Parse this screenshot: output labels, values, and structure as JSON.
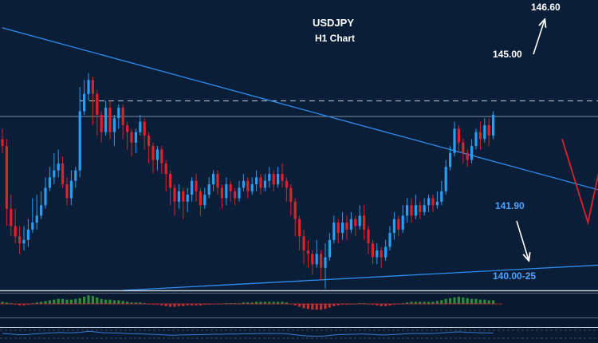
{
  "chart_data": {
    "type": "candlestick",
    "title": "USDJPY",
    "subtitle": "H1 Chart",
    "colors": {
      "background": "#0b1e38",
      "bull": "#2a9df4",
      "bear": "#e0202a",
      "trendline": "#2f8ef0",
      "dashed_level": "#c8d0da",
      "current_level": "#7d8fa6",
      "forecast_red": "#e0202a",
      "forecast_white": "#ffffff",
      "label_white": "#ffffff",
      "label_blue": "#4fa3ff",
      "osc_green": "#2e8b3e",
      "osc_red": "#c23030",
      "osc_line": "#3a7bd5"
    },
    "ylim": [
      139.55,
      147.9
    ],
    "levels": [
      {
        "price": 145.0,
        "label": "145.00",
        "style": "dashed"
      },
      {
        "price": 144.55,
        "label": "",
        "style": "solid"
      }
    ],
    "annotations": [
      {
        "text": "146.60",
        "color": "white",
        "arrow": "up"
      },
      {
        "text": "145.00",
        "color": "white"
      },
      {
        "text": "141.90",
        "color": "blue"
      },
      {
        "text": "140.00-25",
        "color": "blue",
        "arrow": "down"
      }
    ],
    "trendlines": [
      {
        "name": "upper",
        "from": [
          0,
          147.1
        ],
        "to": [
          150,
          142.05
        ]
      },
      {
        "name": "lower",
        "from": [
          28,
          139.55
        ],
        "to": [
          150,
          140.35
        ]
      }
    ],
    "forecast_path": [
      [
        130,
        143.9
      ],
      [
        136,
        141.5
      ],
      [
        140,
        143.8
      ],
      [
        144,
        142.4
      ]
    ],
    "candles": [
      [
        143.9,
        143.7,
        144.2,
        143.5
      ],
      [
        143.7,
        141.9,
        143.9,
        141.4
      ],
      [
        141.9,
        141.4,
        142.3,
        141.1
      ],
      [
        141.4,
        141.1,
        141.9,
        140.9
      ],
      [
        141.1,
        140.9,
        141.4,
        140.6
      ],
      [
        140.9,
        141.0,
        141.4,
        140.7
      ],
      [
        141.0,
        141.3,
        141.6,
        140.8
      ],
      [
        141.3,
        141.5,
        142.2,
        141.2
      ],
      [
        141.5,
        141.7,
        142.3,
        141.3
      ],
      [
        141.7,
        142.0,
        142.4,
        141.6
      ],
      [
        142.0,
        142.5,
        142.8,
        141.9
      ],
      [
        142.5,
        142.8,
        143.1,
        142.4
      ],
      [
        142.8,
        143.0,
        143.5,
        142.6
      ],
      [
        143.0,
        143.2,
        143.6,
        142.8
      ],
      [
        143.2,
        142.6,
        143.4,
        142.5
      ],
      [
        142.6,
        142.2,
        142.8,
        142.0
      ],
      [
        142.2,
        142.7,
        143.0,
        142.0
      ],
      [
        142.7,
        143.0,
        143.1,
        142.5
      ],
      [
        143.0,
        144.7,
        145.4,
        142.8
      ],
      [
        144.7,
        145.2,
        145.6,
        144.6
      ],
      [
        145.2,
        145.6,
        145.8,
        145.0
      ],
      [
        145.6,
        145.2,
        145.7,
        144.3
      ],
      [
        145.2,
        144.6,
        145.3,
        144.0
      ],
      [
        144.6,
        144.1,
        144.7,
        143.8
      ],
      [
        144.1,
        144.8,
        145.0,
        144.0
      ],
      [
        144.8,
        144.1,
        145.0,
        143.9
      ],
      [
        144.1,
        144.5,
        144.6,
        143.7
      ],
      [
        144.5,
        144.8,
        144.9,
        144.2
      ],
      [
        144.8,
        144.3,
        144.9,
        143.9
      ],
      [
        144.3,
        144.1,
        144.4,
        143.6
      ],
      [
        144.1,
        143.8,
        144.2,
        143.4
      ],
      [
        143.8,
        144.1,
        144.2,
        143.5
      ],
      [
        144.1,
        144.4,
        144.6,
        144.0
      ],
      [
        144.4,
        144.0,
        144.5,
        143.6
      ],
      [
        144.0,
        143.7,
        144.1,
        143.2
      ],
      [
        143.7,
        143.3,
        143.8,
        142.9
      ],
      [
        143.3,
        143.6,
        143.7,
        143.0
      ],
      [
        143.6,
        143.2,
        143.7,
        142.9
      ],
      [
        143.2,
        142.9,
        143.3,
        142.4
      ],
      [
        142.9,
        142.5,
        143.0,
        142.0
      ],
      [
        142.5,
        142.1,
        142.6,
        141.7
      ],
      [
        142.1,
        142.4,
        142.6,
        141.9
      ],
      [
        142.4,
        142.1,
        142.5,
        141.6
      ],
      [
        142.1,
        142.3,
        142.5,
        141.8
      ],
      [
        142.3,
        142.7,
        142.8,
        142.1
      ],
      [
        142.7,
        142.4,
        142.9,
        142.1
      ],
      [
        142.4,
        142.0,
        142.5,
        141.7
      ],
      [
        142.0,
        142.3,
        142.5,
        141.9
      ],
      [
        142.3,
        142.6,
        142.8,
        142.2
      ],
      [
        142.6,
        142.9,
        143.0,
        142.4
      ],
      [
        142.9,
        142.5,
        143.0,
        142.3
      ],
      [
        142.5,
        142.2,
        142.6,
        141.9
      ],
      [
        142.2,
        142.6,
        142.8,
        142.0
      ],
      [
        142.6,
        142.4,
        142.7,
        142.1
      ],
      [
        142.4,
        142.2,
        142.5,
        142.0
      ],
      [
        142.2,
        142.5,
        142.7,
        142.1
      ],
      [
        142.5,
        142.7,
        142.9,
        142.4
      ],
      [
        142.7,
        142.4,
        142.8,
        142.2
      ],
      [
        142.4,
        142.6,
        142.8,
        142.3
      ],
      [
        142.6,
        142.8,
        143.0,
        142.4
      ],
      [
        142.8,
        142.5,
        142.9,
        142.3
      ],
      [
        142.5,
        142.7,
        142.9,
        142.4
      ],
      [
        142.7,
        142.9,
        143.1,
        142.5
      ],
      [
        142.9,
        142.6,
        143.0,
        142.4
      ],
      [
        142.6,
        142.9,
        143.1,
        142.5
      ],
      [
        142.9,
        142.7,
        143.2,
        142.5
      ],
      [
        142.7,
        142.5,
        142.8,
        142.1
      ],
      [
        142.5,
        142.1,
        142.6,
        141.7
      ],
      [
        142.1,
        141.6,
        142.2,
        141.1
      ],
      [
        141.6,
        141.1,
        141.7,
        140.7
      ],
      [
        141.1,
        140.7,
        141.3,
        140.3
      ],
      [
        140.7,
        140.6,
        141.0,
        140.2
      ],
      [
        140.6,
        140.3,
        140.7,
        140.0
      ],
      [
        140.3,
        140.6,
        141.0,
        140.2
      ],
      [
        140.6,
        140.2,
        140.7,
        139.85
      ],
      [
        140.2,
        140.5,
        140.9,
        139.6
      ],
      [
        140.5,
        141.0,
        141.2,
        140.4
      ],
      [
        141.0,
        141.5,
        141.7,
        140.9
      ],
      [
        141.5,
        141.2,
        141.6,
        140.9
      ],
      [
        141.2,
        141.5,
        141.8,
        141.0
      ],
      [
        141.5,
        141.3,
        141.7,
        141.0
      ],
      [
        141.3,
        141.6,
        141.8,
        141.2
      ],
      [
        141.6,
        141.4,
        141.7,
        141.1
      ],
      [
        141.4,
        141.7,
        142.0,
        141.3
      ],
      [
        141.7,
        141.3,
        142.0,
        141.0
      ],
      [
        141.3,
        140.9,
        141.4,
        140.6
      ],
      [
        140.9,
        140.5,
        141.0,
        140.3
      ],
      [
        140.5,
        140.7,
        140.9,
        140.3
      ],
      [
        140.7,
        140.5,
        140.8,
        140.2
      ],
      [
        140.5,
        140.8,
        141.0,
        140.4
      ],
      [
        140.8,
        141.2,
        141.4,
        140.7
      ],
      [
        141.2,
        141.6,
        141.8,
        141.0
      ],
      [
        141.6,
        141.3,
        141.7,
        141.1
      ],
      [
        141.3,
        141.7,
        142.0,
        141.2
      ],
      [
        141.7,
        142.0,
        142.2,
        141.5
      ],
      [
        142.0,
        141.7,
        142.2,
        141.5
      ],
      [
        141.7,
        142.0,
        142.3,
        141.6
      ],
      [
        142.0,
        141.8,
        142.1,
        141.6
      ],
      [
        141.8,
        142.0,
        142.2,
        141.7
      ],
      [
        142.0,
        142.2,
        142.3,
        141.8
      ],
      [
        142.2,
        142.0,
        142.3,
        141.8
      ],
      [
        142.0,
        142.1,
        142.4,
        141.9
      ],
      [
        142.1,
        142.4,
        142.7,
        142.0
      ],
      [
        142.4,
        143.1,
        143.3,
        142.3
      ],
      [
        143.1,
        143.5,
        143.7,
        143.0
      ],
      [
        143.5,
        144.2,
        144.4,
        143.4
      ],
      [
        144.2,
        143.8,
        144.3,
        143.5
      ],
      [
        143.8,
        143.5,
        143.9,
        143.2
      ],
      [
        143.5,
        143.3,
        143.6,
        143.1
      ],
      [
        143.3,
        143.7,
        143.9,
        143.2
      ],
      [
        143.7,
        144.1,
        144.2,
        143.6
      ],
      [
        144.1,
        143.9,
        144.4,
        143.6
      ],
      [
        143.9,
        144.3,
        144.5,
        143.8
      ],
      [
        144.3,
        144.0,
        144.5,
        143.7
      ],
      [
        144.0,
        144.6,
        144.7,
        143.9
      ]
    ],
    "oscillator": [
      0.3,
      0.2,
      0.1,
      -0.1,
      -0.2,
      -0.2,
      -0.1,
      0.1,
      0.2,
      0.3,
      0.4,
      0.5,
      0.6,
      0.7,
      0.7,
      0.6,
      0.6,
      0.7,
      0.8,
      1.0,
      1.2,
      1.1,
      0.9,
      0.7,
      0.6,
      0.6,
      0.5,
      0.5,
      0.4,
      0.3,
      0.2,
      0.2,
      0.2,
      0.1,
      0.0,
      -0.1,
      -0.1,
      -0.2,
      -0.3,
      -0.4,
      -0.4,
      -0.3,
      -0.3,
      -0.2,
      -0.2,
      -0.2,
      -0.2,
      -0.1,
      -0.1,
      0.0,
      0.0,
      0.0,
      0.1,
      0.1,
      0.1,
      0.1,
      0.2,
      0.2,
      0.2,
      0.3,
      0.3,
      0.3,
      0.3,
      0.3,
      0.3,
      0.3,
      0.2,
      0.0,
      -0.2,
      -0.4,
      -0.6,
      -0.7,
      -0.8,
      -0.8,
      -0.8,
      -0.7,
      -0.5,
      -0.3,
      -0.2,
      -0.1,
      -0.1,
      0.0,
      0.0,
      0.1,
      0.1,
      0.0,
      -0.1,
      -0.2,
      -0.3,
      -0.3,
      -0.2,
      -0.1,
      0.0,
      0.1,
      0.2,
      0.3,
      0.3,
      0.3,
      0.3,
      0.3,
      0.3,
      0.4,
      0.5,
      0.7,
      0.8,
      0.9,
      1.0,
      0.9,
      0.8,
      0.7,
      0.7,
      0.6,
      0.6,
      0.5,
      0.5
    ]
  }
}
